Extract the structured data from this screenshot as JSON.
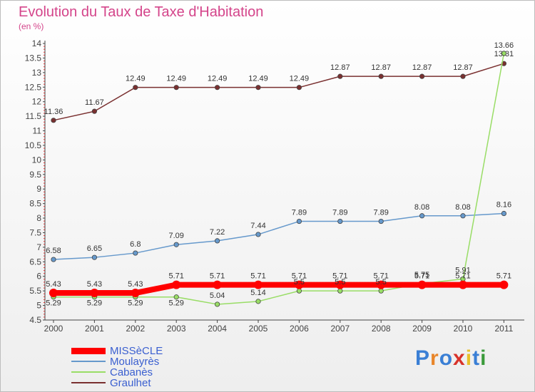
{
  "chart_data": {
    "type": "line",
    "title": "Evolution du Taux de Taxe d'Habitation",
    "unit_label": "(en %)",
    "x": [
      "2000",
      "2001",
      "2002",
      "2003",
      "2004",
      "2005",
      "2006",
      "2007",
      "2008",
      "2009",
      "2010",
      "2011"
    ],
    "ylim": [
      4.5,
      14
    ],
    "yticks": [
      "4.5",
      "5",
      "5.5",
      "6",
      "6.5",
      "7",
      "7.5",
      "8",
      "8.5",
      "9",
      "9.5",
      "10",
      "10.5",
      "11",
      "11.5",
      "12",
      "12.5",
      "13",
      "13.5",
      "14"
    ],
    "grid": false,
    "legend_position": "bottom-left",
    "series": [
      {
        "name": "MISSèCLE",
        "color": "#ff0000",
        "values": [
          5.43,
          5.43,
          5.43,
          5.71,
          5.71,
          5.71,
          5.71,
          5.71,
          5.71,
          5.71,
          5.71,
          5.71
        ],
        "labels": [
          "5.43",
          "5.43",
          "5.43",
          "5.71",
          "5.71",
          "5.71",
          "5.71",
          "5.71",
          "5.71",
          "5.71",
          "5.71",
          "5.71"
        ]
      },
      {
        "name": "Moulayrès",
        "color": "#6699cc",
        "values": [
          6.58,
          6.65,
          6.8,
          7.09,
          7.22,
          7.44,
          7.89,
          7.89,
          7.89,
          8.08,
          8.08,
          8.16
        ],
        "labels": [
          "6.58",
          "6.65",
          "6.8",
          "7.09",
          "7.22",
          "7.44",
          "7.89",
          "7.89",
          "7.89",
          "8.08",
          "8.08",
          "8.16"
        ]
      },
      {
        "name": "Cabanès",
        "color": "#99dd66",
        "values": [
          5.29,
          5.29,
          5.29,
          5.29,
          5.04,
          5.14,
          5.5,
          5.5,
          5.5,
          5.75,
          5.91,
          13.66
        ],
        "labels": [
          "5.29",
          "5.29",
          "5.29",
          "5.29",
          "5.04",
          "5.14",
          "5.5",
          "5.5",
          "5.5",
          "5.75",
          "5.91",
          "13.66"
        ]
      },
      {
        "name": "Graulhet",
        "color": "#7a3030",
        "values": [
          11.36,
          11.67,
          12.49,
          12.49,
          12.49,
          12.49,
          12.49,
          12.87,
          12.87,
          12.87,
          12.87,
          13.31
        ],
        "labels": [
          "11.36",
          "11.67",
          "12.49",
          "12.49",
          "12.49",
          "12.49",
          "12.49",
          "12.87",
          "12.87",
          "12.87",
          "12.87",
          "13.31"
        ]
      }
    ]
  },
  "brand": {
    "letters": [
      "P",
      "r",
      "o",
      "x",
      "i",
      "t",
      "i"
    ],
    "colors": [
      "#3a7fd5",
      "#e8862a",
      "#3a7fd5",
      "#d8332a",
      "#e8c02a",
      "#3a7fd5",
      "#3a9a3a"
    ]
  }
}
